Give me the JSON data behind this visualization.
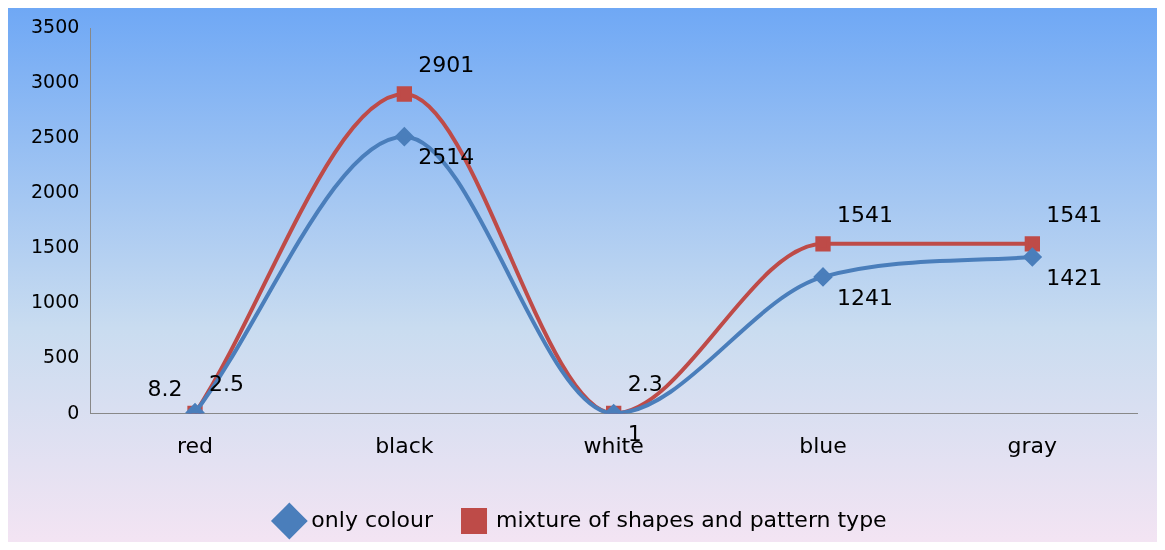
{
  "chart_data": {
    "type": "line",
    "categories": [
      "red",
      "black",
      "white",
      "blue",
      "gray"
    ],
    "series": [
      {
        "name": "only colour",
        "color": "#4a7ebb",
        "marker": "diamond",
        "values": [
          8.2,
          2514,
          1,
          1241,
          1421
        ]
      },
      {
        "name": "mixture of shapes and pattern type",
        "color": "#be4b48",
        "marker": "square",
        "values": [
          2.5,
          2901,
          2.3,
          1541,
          1541
        ]
      }
    ],
    "ylim": [
      0,
      3500
    ],
    "yticks": [
      0,
      500,
      1000,
      1500,
      2000,
      2500,
      3000,
      3500
    ],
    "grid": false,
    "legend": "bottom",
    "data_labels": true
  }
}
